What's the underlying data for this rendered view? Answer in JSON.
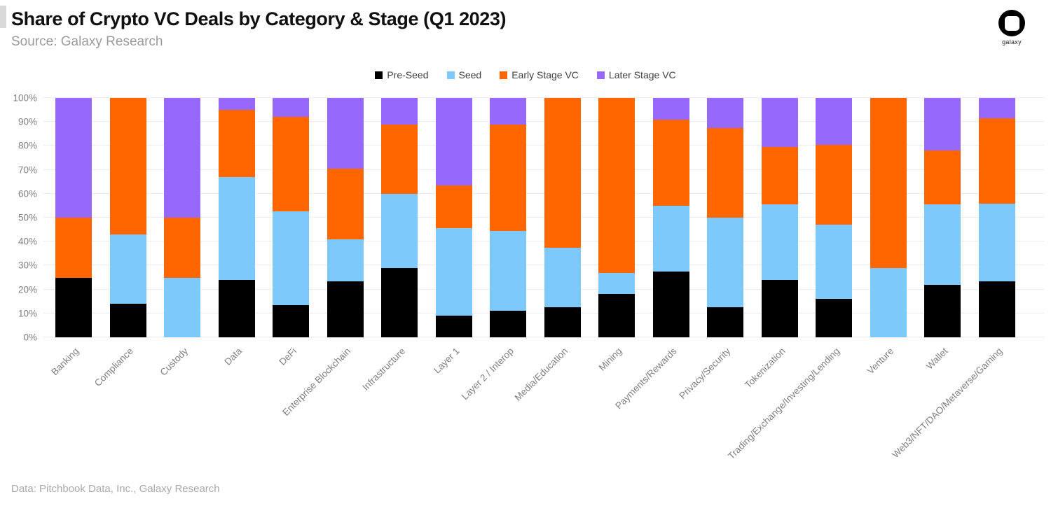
{
  "header": {
    "title": "Share of Crypto VC Deals by Category & Stage (Q1 2023)",
    "source": "Source: Galaxy Research",
    "logo_label": "galaxy"
  },
  "footer": {
    "credit": "Data: Pitchbook Data, Inc., Galaxy Research"
  },
  "colors": {
    "pre_seed": "#000000",
    "seed": "#7DC9FB",
    "early_stage_vc": "#FF6600",
    "later_stage_vc": "#9768FC",
    "grid": "#ECECEC",
    "axis_text": "#7F7F7F"
  },
  "chart_data": {
    "type": "bar",
    "stacked": true,
    "units": "percent_share",
    "title": "Share of Crypto VC Deals by Category & Stage (Q1 2023)",
    "xlabel": "",
    "ylabel": "",
    "ylim": [
      0,
      100
    ],
    "y_ticks": [
      "0%",
      "10%",
      "20%",
      "30%",
      "40%",
      "50%",
      "60%",
      "70%",
      "80%",
      "90%",
      "100%"
    ],
    "grid": "horizontal",
    "legend_position": "top-center",
    "categories": [
      "Banking",
      "Compliance",
      "Custody",
      "Data",
      "DeFi",
      "Enterprise Blockchain",
      "Infrastructure",
      "Layer 1",
      "Layer 2 / Interop",
      "Media/Education",
      "Mining",
      "Payments/Rewards",
      "Privacy/Security",
      "Tokenization",
      "Trading/Exchange/Investing/Lending",
      "Venture",
      "Wallet",
      "Web3/NFT/DAO/Metaverse/Gaming"
    ],
    "series": [
      {
        "name": "Pre-Seed",
        "color": "#000000",
        "values": [
          25,
          14,
          0,
          24,
          13.5,
          23.5,
          29,
          9,
          11,
          12.5,
          18,
          27.5,
          12.5,
          24,
          16,
          0,
          22,
          23.5
        ]
      },
      {
        "name": "Seed",
        "color": "#7DC9FB",
        "values": [
          0,
          29,
          25,
          43,
          39,
          17.5,
          31,
          36.5,
          33.5,
          25,
          9,
          27.5,
          37.5,
          31.5,
          31,
          29,
          33.5,
          32.5
        ]
      },
      {
        "name": "Early Stage VC",
        "color": "#FF6600",
        "values": [
          25,
          57,
          25,
          28,
          39.5,
          29.5,
          29,
          18,
          44.5,
          62.5,
          73,
          36,
          37.5,
          24,
          33.5,
          71,
          22.5,
          35.5
        ]
      },
      {
        "name": "Later Stage VC",
        "color": "#9768FC",
        "values": [
          50,
          0,
          50,
          5,
          8,
          29.5,
          11,
          36.5,
          11,
          0,
          0,
          9,
          12.5,
          20.5,
          19.5,
          0,
          22,
          8.5
        ]
      }
    ]
  }
}
